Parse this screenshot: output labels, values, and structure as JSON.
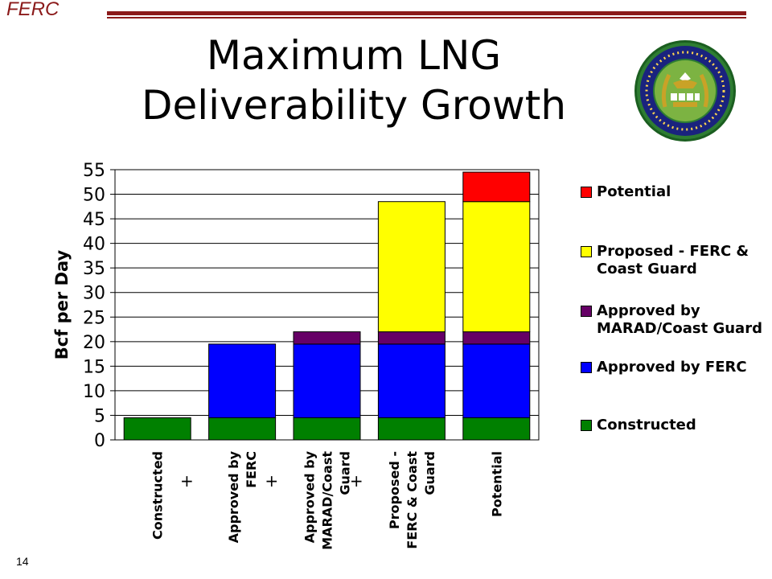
{
  "header": {
    "tag": "FERC"
  },
  "title": "Maximum LNG Deliverability Growth",
  "page_number": "14",
  "seal": {
    "name": "department-of-energy-ferc-seal"
  },
  "colors": {
    "constructed": "#008000",
    "approved_ferc": "#0000ff",
    "approved_marad": "#660066",
    "proposed": "#ffff00",
    "potential": "#ff0000",
    "brand": "#8b1a1a"
  },
  "chart_data": {
    "type": "bar",
    "stacked": true,
    "title": "",
    "xlabel": "",
    "ylabel": "Bcf per Day",
    "ylim": [
      0,
      55
    ],
    "yticks": [
      0,
      5,
      10,
      15,
      20,
      25,
      30,
      35,
      40,
      45,
      50,
      55
    ],
    "grid": true,
    "legend_position": "right",
    "categories": [
      "Constructed",
      "Approved by FERC",
      "Approved by MARAD/Coast Guard",
      "Proposed - FERC & Coast Guard",
      "Potential"
    ],
    "category_labels": [
      [
        "Constructed"
      ],
      [
        "Approved by",
        "FERC"
      ],
      [
        "Approved by",
        "MARAD/Coast",
        "Guard"
      ],
      [
        "Proposed -",
        "FERC & Coast",
        "Guard"
      ],
      [
        "Potential"
      ]
    ],
    "plus_marks": [
      "+",
      "+",
      "+"
    ],
    "series": [
      {
        "name": "Constructed",
        "color": "#008000",
        "values": [
          4.5,
          4.5,
          4.5,
          4.5,
          4.5
        ]
      },
      {
        "name": "Approved by FERC",
        "color": "#0000ff",
        "values": [
          0,
          15,
          15,
          15,
          15
        ]
      },
      {
        "name": "Approved by MARAD/Coast Guard",
        "color": "#660066",
        "values": [
          0,
          0,
          2.5,
          2.5,
          2.5
        ]
      },
      {
        "name": "Proposed - FERC & Coast Guard",
        "color": "#ffff00",
        "values": [
          0,
          0,
          0,
          26.5,
          26.5
        ]
      },
      {
        "name": "Potential",
        "color": "#ff0000",
        "values": [
          0,
          0,
          0,
          0,
          6
        ]
      }
    ],
    "legend": [
      {
        "label": "Potential",
        "color": "#ff0000"
      },
      {
        "label": "Proposed - FERC & Coast Guard",
        "color": "#ffff00"
      },
      {
        "label": "Approved by MARAD/Coast Guard",
        "color": "#660066"
      },
      {
        "label": "Approved by FERC",
        "color": "#0000ff"
      },
      {
        "label": "Constructed",
        "color": "#008000"
      }
    ]
  }
}
